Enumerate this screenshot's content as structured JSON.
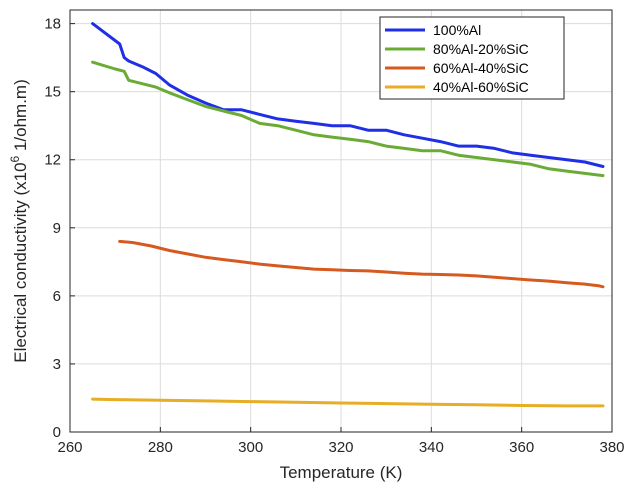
{
  "chart_data": {
    "type": "line",
    "title": "",
    "xlabel": "Temperature (K)",
    "ylabel": {
      "prefix": "Electrical conductivity (x10",
      "exponent": "6",
      "suffix": " 1/ohm.m)"
    },
    "xlim": [
      260,
      380
    ],
    "ylim": [
      0,
      18.6
    ],
    "xticks": [
      260,
      280,
      300,
      320,
      340,
      360,
      380
    ],
    "yticks": [
      0,
      3,
      6,
      9,
      12,
      15,
      18
    ],
    "grid": true,
    "legend": "top-right",
    "series": [
      {
        "name": "100%Al",
        "color": "#1f2fe6",
        "x": [
          265,
          271,
          272,
          273,
          276,
          279,
          282,
          286,
          290,
          294,
          298,
          302,
          306,
          310,
          314,
          318,
          322,
          326,
          330,
          334,
          338,
          342,
          346,
          350,
          354,
          358,
          362,
          366,
          370,
          374,
          378
        ],
        "y": [
          18.0,
          17.1,
          16.5,
          16.35,
          16.1,
          15.8,
          15.3,
          14.85,
          14.5,
          14.2,
          14.2,
          14.0,
          13.8,
          13.7,
          13.6,
          13.5,
          13.5,
          13.3,
          13.3,
          13.1,
          12.95,
          12.8,
          12.6,
          12.6,
          12.5,
          12.3,
          12.2,
          12.1,
          12.0,
          11.9,
          11.7
        ]
      },
      {
        "name": "80%Al-20%SiC",
        "color": "#6aab35",
        "x": [
          265,
          270,
          272,
          273,
          276,
          279,
          282,
          286,
          290,
          294,
          298,
          302,
          306,
          310,
          314,
          318,
          322,
          326,
          330,
          334,
          338,
          342,
          346,
          350,
          354,
          358,
          362,
          366,
          370,
          374,
          378
        ],
        "y": [
          16.3,
          16.0,
          15.9,
          15.5,
          15.35,
          15.2,
          14.95,
          14.65,
          14.35,
          14.15,
          13.95,
          13.6,
          13.5,
          13.3,
          13.1,
          13.0,
          12.9,
          12.8,
          12.6,
          12.5,
          12.4,
          12.4,
          12.2,
          12.1,
          12.0,
          11.9,
          11.8,
          11.6,
          11.5,
          11.4,
          11.3
        ]
      },
      {
        "name": "60%Al-40%SiC",
        "color": "#d65a1f",
        "x": [
          271,
          274,
          278,
          282,
          286,
          290,
          294,
          298,
          302,
          306,
          310,
          314,
          318,
          322,
          326,
          330,
          334,
          338,
          342,
          346,
          350,
          354,
          358,
          362,
          366,
          370,
          374,
          377,
          378
        ],
        "y": [
          8.4,
          8.35,
          8.2,
          8.0,
          7.85,
          7.7,
          7.6,
          7.5,
          7.4,
          7.32,
          7.25,
          7.18,
          7.15,
          7.12,
          7.1,
          7.05,
          7.0,
          6.96,
          6.94,
          6.92,
          6.88,
          6.82,
          6.76,
          6.7,
          6.65,
          6.58,
          6.52,
          6.45,
          6.4
        ]
      },
      {
        "name": "40%Al-60%SiC",
        "color": "#e6ad25",
        "x": [
          265,
          270,
          280,
          290,
          300,
          310,
          320,
          330,
          340,
          350,
          360,
          370,
          378
        ],
        "y": [
          1.45,
          1.43,
          1.4,
          1.37,
          1.34,
          1.31,
          1.28,
          1.25,
          1.22,
          1.2,
          1.17,
          1.15,
          1.15
        ]
      }
    ]
  }
}
